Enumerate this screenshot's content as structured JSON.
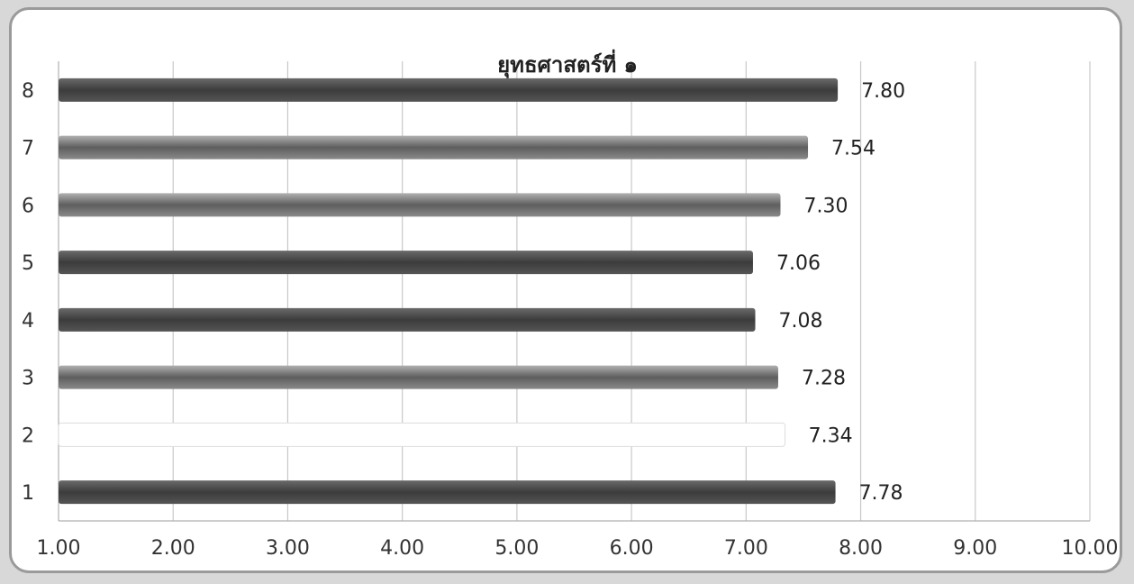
{
  "chart_data": {
    "type": "bar",
    "orientation": "horizontal",
    "title": "ยุทธศาสตร์ที่ ๑",
    "categories": [
      "1",
      "2",
      "3",
      "4",
      "5",
      "6",
      "7",
      "8"
    ],
    "values": [
      7.78,
      7.34,
      7.28,
      7.08,
      7.06,
      7.3,
      7.54,
      7.8
    ],
    "value_labels": [
      "7.78",
      "7.34",
      "7.28",
      "7.08",
      "7.06",
      "7.30",
      "7.54",
      "7.80"
    ],
    "x_ticks": [
      "1.00",
      "2.00",
      "3.00",
      "4.00",
      "5.00",
      "6.00",
      "7.00",
      "8.00",
      "9.00",
      "10.00"
    ],
    "xlim": [
      1,
      10
    ],
    "grid": "vertical",
    "legend": "none",
    "bar_styles": [
      "dark",
      "light",
      "medium",
      "dark",
      "dark",
      "medium",
      "medium",
      "dark"
    ],
    "colors": {
      "dark": "#4a4a4a",
      "medium": "#6e6e6e",
      "light": "#ffffff",
      "grid": "#c8c8c8",
      "frame": "#9a9a9a"
    }
  }
}
